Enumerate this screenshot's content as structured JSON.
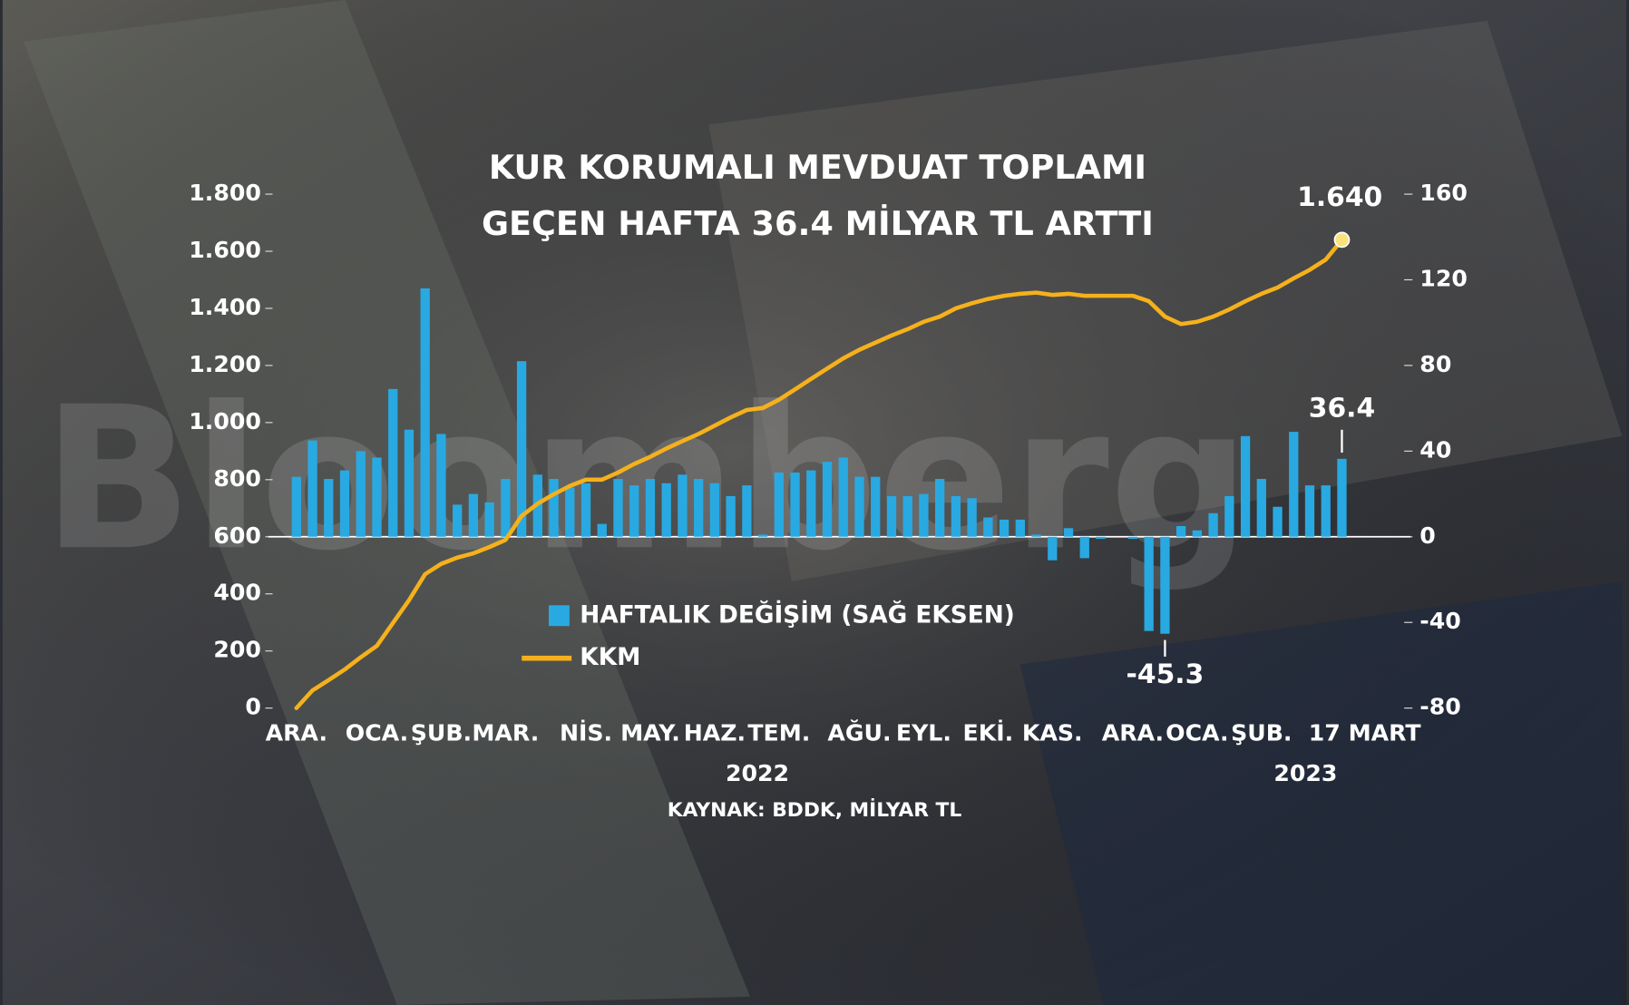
{
  "chart_data": {
    "type": "combo",
    "title": "KUR KORUMALI MEVDUAT TOPLAMI",
    "subtitle": "GEÇEN HAFTA 36.4 MİLYAR TL ARTTI",
    "watermark": "Bloomberg",
    "source": "KAYNAK: BDDK, MİLYAR TL",
    "categories": [
      "ARA.",
      null,
      null,
      null,
      null,
      "OCA.",
      null,
      null,
      null,
      "ŞUB.",
      null,
      null,
      null,
      "MAR.",
      null,
      null,
      null,
      null,
      "NİS.",
      null,
      null,
      null,
      "MAY.",
      null,
      null,
      null,
      "HAZ.",
      null,
      null,
      null,
      "TEM.",
      null,
      null,
      null,
      null,
      "AĞU.",
      null,
      null,
      null,
      "EYL.",
      null,
      null,
      null,
      "EKİ.",
      null,
      null,
      null,
      "KAS.",
      null,
      null,
      null,
      null,
      "ARA.",
      null,
      null,
      null,
      "OCA.",
      null,
      null,
      null,
      "ŞUB.",
      null,
      null,
      null,
      null,
      "17 MART"
    ],
    "year_labels": [
      "2022",
      "2023"
    ],
    "ylim": [
      0,
      1800
    ],
    "yticks": [
      0,
      200,
      400,
      600,
      800,
      {
        "value": 1000,
        "label": "1.000"
      },
      {
        "value": 1200,
        "label": "1.200"
      },
      {
        "value": 1400,
        "label": "1.400"
      },
      {
        "value": 1600,
        "label": "1.600"
      },
      {
        "value": 1800,
        "label": "1.800"
      }
    ],
    "y2lim": [
      -80,
      160
    ],
    "y2ticks": [
      -80,
      -40,
      0,
      40,
      80,
      120,
      160
    ],
    "legend": "lower-center",
    "series": [
      {
        "name": "HAFTALIK DEĞİŞİM (SAĞ EKSEN)",
        "type": "bar",
        "axis": "y2",
        "color": "#29a9e1",
        "values": [
          28,
          45,
          27,
          31,
          40,
          37,
          69,
          50,
          116,
          48,
          15,
          20,
          16,
          27,
          82,
          29,
          27,
          23,
          25,
          6,
          27,
          24,
          27,
          25,
          29,
          27,
          25,
          19,
          24,
          1,
          30,
          30,
          31,
          35,
          37,
          28,
          28,
          19,
          19,
          20,
          27,
          19,
          18,
          9,
          8,
          8,
          1,
          -11,
          4,
          -10,
          -1,
          0,
          -1,
          -44,
          -45.3,
          5,
          3,
          11,
          19,
          47,
          27,
          14,
          49,
          24,
          24,
          36.4
        ],
        "value_labels": [
          null,
          null,
          null,
          null,
          null,
          null,
          null,
          null,
          null,
          null,
          null,
          null,
          null,
          null,
          null,
          null,
          null,
          null,
          null,
          null,
          null,
          null,
          null,
          null,
          null,
          null,
          null,
          null,
          null,
          null,
          null,
          null,
          null,
          null,
          null,
          null,
          null,
          null,
          null,
          null,
          null,
          null,
          null,
          null,
          null,
          null,
          null,
          null,
          null,
          null,
          null,
          null,
          null,
          null,
          "-45.3",
          null,
          null,
          null,
          null,
          null,
          null,
          null,
          null,
          null,
          null,
          "36.4"
        ]
      },
      {
        "name": "KKM",
        "type": "line",
        "color": "#f5b11c",
        "values": [
          0,
          62,
          98,
          135,
          178,
          218,
          298,
          378,
          469,
          505,
          527,
          542,
          564,
          589,
          673,
          716,
          749,
          778,
          800,
          800,
          825,
          855,
          880,
          909,
          935,
          960,
          989,
          1018,
          1044,
          1051,
          1080,
          1116,
          1153,
          1189,
          1225,
          1255,
          1280,
          1305,
          1327,
          1353,
          1371,
          1400,
          1418,
          1433,
          1444,
          1451,
          1455,
          1447,
          1451,
          1444,
          1444,
          1444,
          1444,
          1425,
          1371,
          1345,
          1353,
          1371,
          1396,
          1425,
          1451,
          1473,
          1505,
          1535,
          1571,
          1640
        ],
        "value_labels": [
          null,
          null,
          null,
          null,
          null,
          null,
          null,
          null,
          null,
          null,
          null,
          null,
          null,
          null,
          null,
          null,
          null,
          null,
          null,
          null,
          null,
          null,
          null,
          null,
          null,
          null,
          null,
          null,
          null,
          null,
          null,
          null,
          null,
          null,
          null,
          null,
          null,
          null,
          null,
          null,
          null,
          null,
          null,
          null,
          null,
          null,
          null,
          null,
          null,
          null,
          null,
          null,
          null,
          null,
          null,
          null,
          null,
          null,
          null,
          null,
          null,
          null,
          null,
          null,
          null,
          "1.640"
        ]
      }
    ]
  }
}
